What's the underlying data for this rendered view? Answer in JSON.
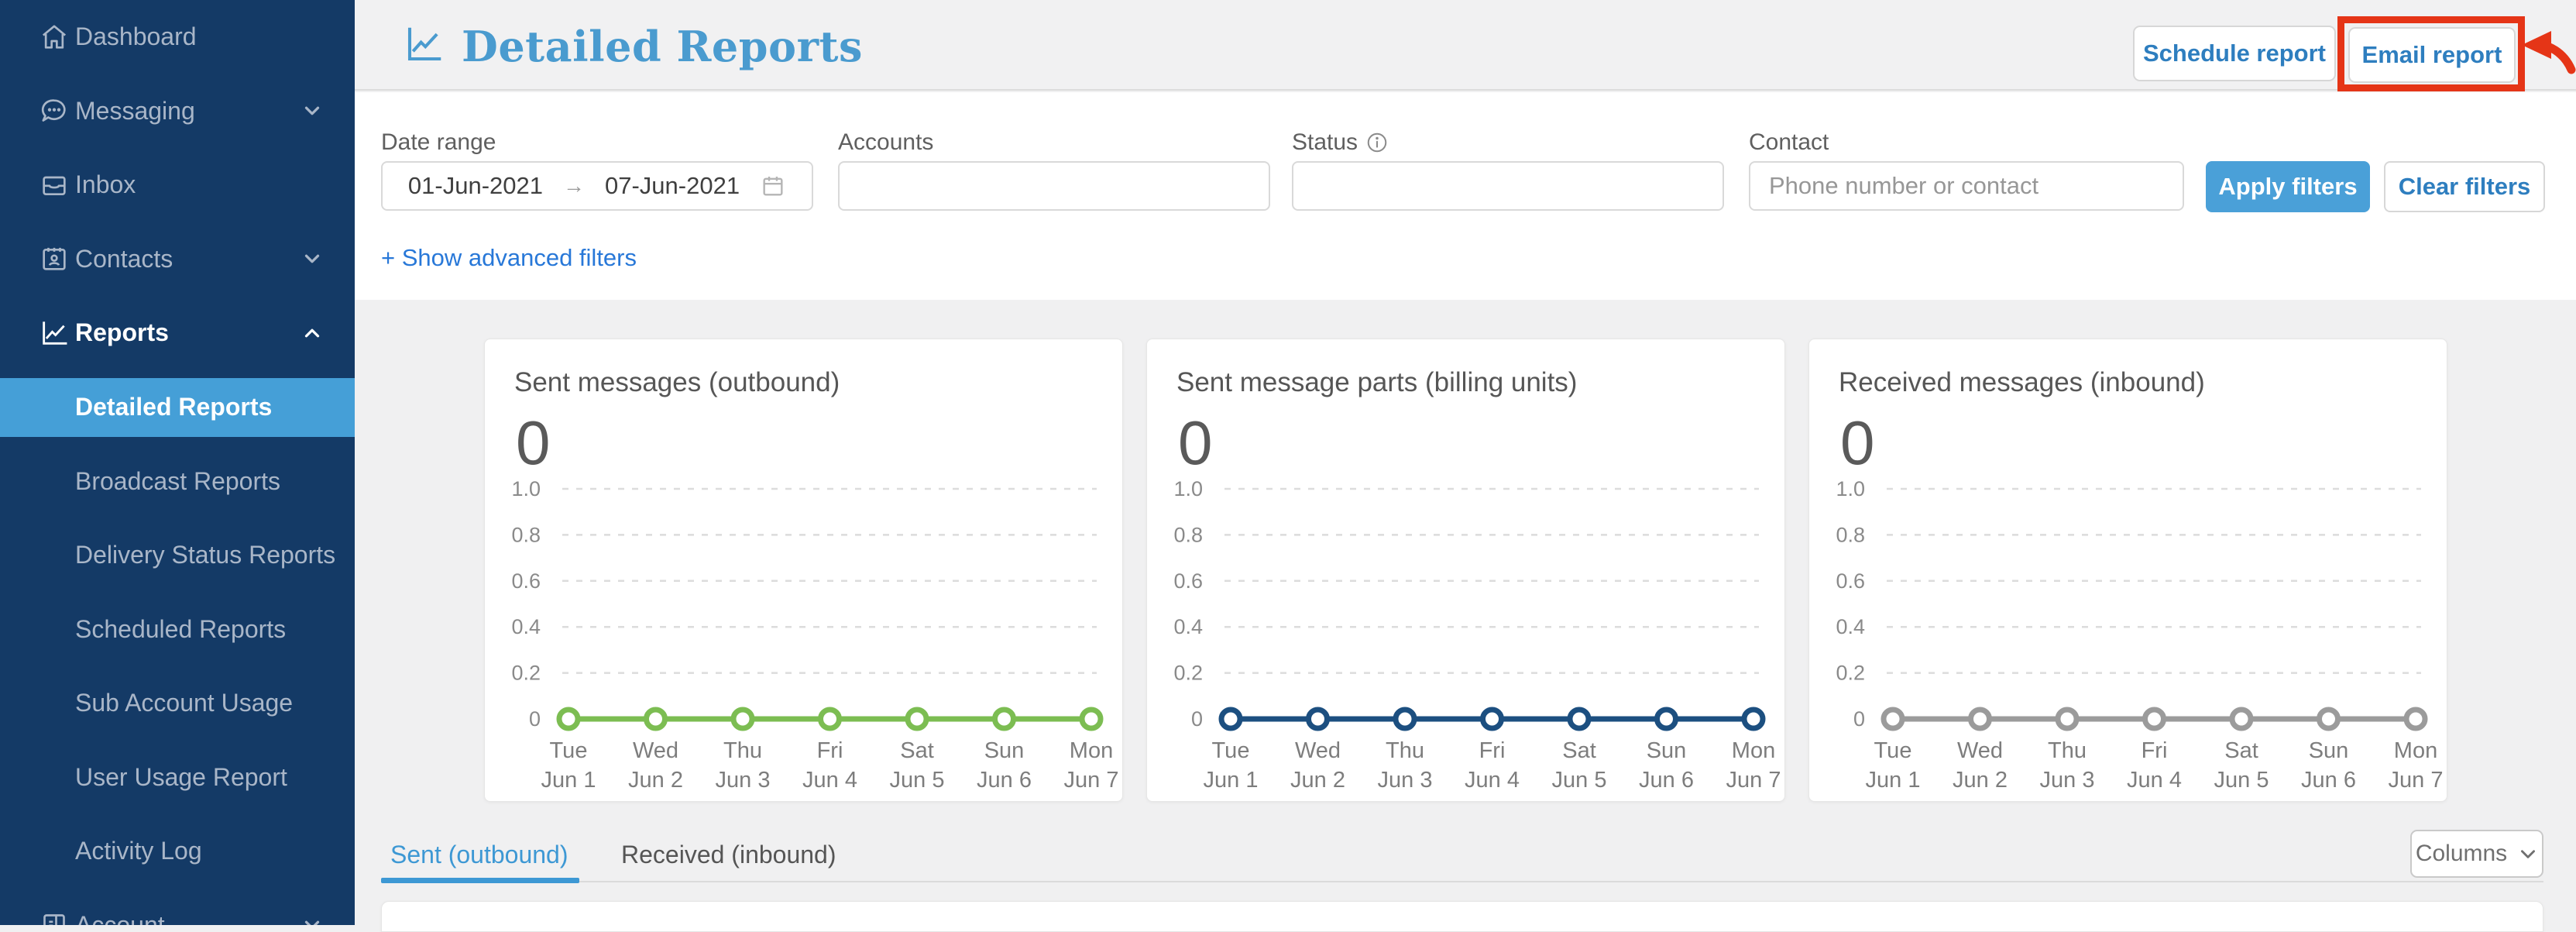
{
  "sidebar": {
    "items": [
      {
        "label": "Dashboard",
        "icon": "home-icon"
      },
      {
        "label": "Messaging",
        "icon": "chat-icon",
        "chevron": "down"
      },
      {
        "label": "Inbox",
        "icon": "inbox-icon"
      },
      {
        "label": "Contacts",
        "icon": "contacts-icon",
        "chevron": "down"
      },
      {
        "label": "Reports",
        "icon": "line-chart-icon",
        "chevron": "up",
        "active": true
      },
      {
        "label": "Detailed Reports",
        "sub": true,
        "selected": true
      },
      {
        "label": "Broadcast Reports",
        "sub": true
      },
      {
        "label": "Delivery Status Reports",
        "sub": true
      },
      {
        "label": "Scheduled Reports",
        "sub": true
      },
      {
        "label": "Sub Account Usage",
        "sub": true
      },
      {
        "label": "User Usage Report",
        "sub": true
      },
      {
        "label": "Activity Log",
        "sub": true
      },
      {
        "label": "Account",
        "icon": "account-icon",
        "chevron": "down"
      }
    ]
  },
  "header": {
    "title": "Detailed Reports",
    "schedule_button": "Schedule report",
    "email_button": "Email report"
  },
  "filters": {
    "date_range": {
      "label": "Date range",
      "start": "01-Jun-2021",
      "end": "07-Jun-2021",
      "arrow": "→"
    },
    "accounts": {
      "label": "Accounts",
      "value": ""
    },
    "status": {
      "label": "Status",
      "value": ""
    },
    "contact": {
      "label": "Contact",
      "placeholder": "Phone number or contact"
    },
    "apply_label": "Apply filters",
    "clear_label": "Clear filters",
    "advanced_link": "+ Show advanced filters"
  },
  "chart_data": [
    {
      "type": "line",
      "title": "Sent messages (outbound)",
      "total": "0",
      "categories": [
        "Tue Jun 1",
        "Wed Jun 2",
        "Thu Jun 3",
        "Fri Jun 4",
        "Sat Jun 5",
        "Sun Jun 6",
        "Mon Jun 7"
      ],
      "tick_days": [
        "Tue",
        "Wed",
        "Thu",
        "Fri",
        "Sat",
        "Sun",
        "Mon"
      ],
      "tick_dates": [
        "Jun 1",
        "Jun 2",
        "Jun 3",
        "Jun 4",
        "Jun 5",
        "Jun 6",
        "Jun 7"
      ],
      "values": [
        0,
        0,
        0,
        0,
        0,
        0,
        0
      ],
      "yticks": [
        "1.0",
        "0.8",
        "0.6",
        "0.4",
        "0.2",
        "0"
      ],
      "ylim": [
        0,
        1.0
      ],
      "grid": "dashed-horizontal",
      "line_color": "#7cbd52"
    },
    {
      "type": "line",
      "title": "Sent message parts (billing units)",
      "total": "0",
      "categories": [
        "Tue Jun 1",
        "Wed Jun 2",
        "Thu Jun 3",
        "Fri Jun 4",
        "Sat Jun 5",
        "Sun Jun 6",
        "Mon Jun 7"
      ],
      "tick_days": [
        "Tue",
        "Wed",
        "Thu",
        "Fri",
        "Sat",
        "Sun",
        "Mon"
      ],
      "tick_dates": [
        "Jun 1",
        "Jun 2",
        "Jun 3",
        "Jun 4",
        "Jun 5",
        "Jun 6",
        "Jun 7"
      ],
      "values": [
        0,
        0,
        0,
        0,
        0,
        0,
        0
      ],
      "yticks": [
        "1.0",
        "0.8",
        "0.6",
        "0.4",
        "0.2",
        "0"
      ],
      "ylim": [
        0,
        1.0
      ],
      "grid": "dashed-horizontal",
      "line_color": "#1c4f80"
    },
    {
      "type": "line",
      "title": "Received messages (inbound)",
      "total": "0",
      "categories": [
        "Tue Jun 1",
        "Wed Jun 2",
        "Thu Jun 3",
        "Fri Jun 4",
        "Sat Jun 5",
        "Sun Jun 6",
        "Mon Jun 7"
      ],
      "tick_days": [
        "Tue",
        "Wed",
        "Thu",
        "Fri",
        "Sat",
        "Sun",
        "Mon"
      ],
      "tick_dates": [
        "Jun 1",
        "Jun 2",
        "Jun 3",
        "Jun 4",
        "Jun 5",
        "Jun 6",
        "Jun 7"
      ],
      "values": [
        0,
        0,
        0,
        0,
        0,
        0,
        0
      ],
      "yticks": [
        "1.0",
        "0.8",
        "0.6",
        "0.4",
        "0.2",
        "0"
      ],
      "ylim": [
        0,
        1.0
      ],
      "grid": "dashed-horizontal",
      "line_color": "#9b9b9b"
    }
  ],
  "tabs": {
    "sent_tab": "Sent (outbound)",
    "received_tab": "Received (inbound)",
    "columns_button": "Columns"
  },
  "colors": {
    "sidebar_bg": "#143a66",
    "sidebar_selected": "#459fd7",
    "accent_blue": "#4aa0d8",
    "title_blue": "#4a9bcf",
    "link_blue": "#2878d8",
    "annotation_red": "#e53517",
    "green_series": "#7cbd52",
    "navy_series": "#1c4f80",
    "gray_series": "#9b9b9b"
  }
}
